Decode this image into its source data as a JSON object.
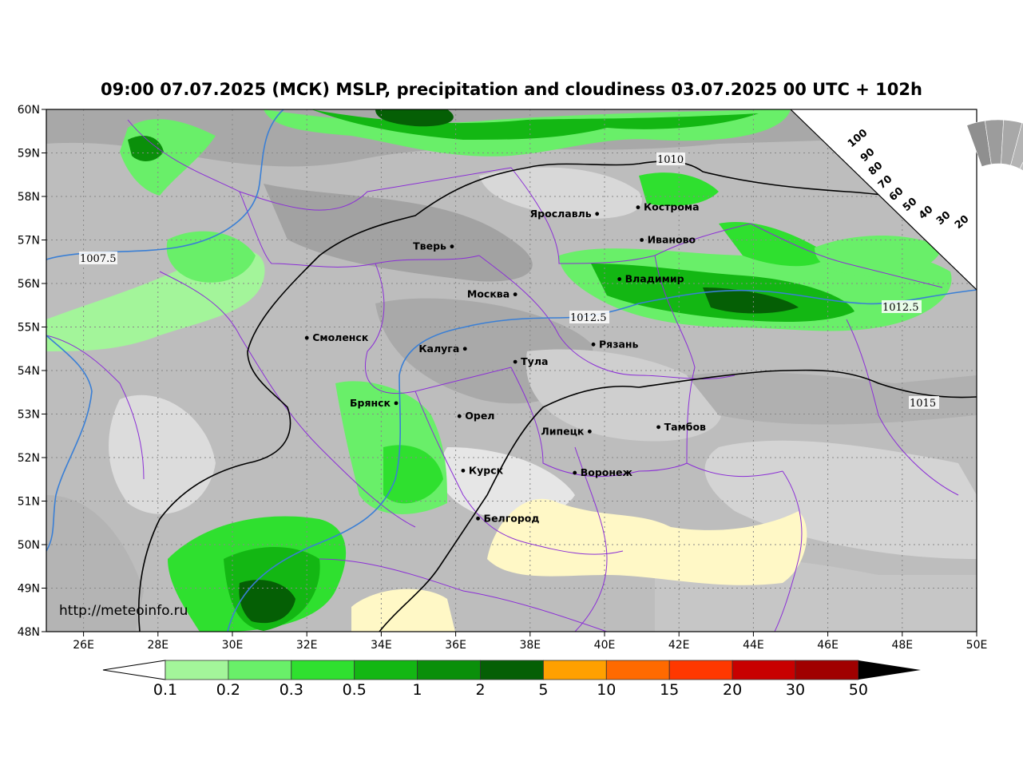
{
  "title": "09:00 07.07.2025 (МСК) MSLP, precipitation and cloudiness 03.07.2025 00 UTC + 102h",
  "watermark": "http://meteoinfo.ru",
  "axes": {
    "lat_labels": [
      "60N",
      "59N",
      "58N",
      "57N",
      "56N",
      "55N",
      "54N",
      "53N",
      "52N",
      "51N",
      "50N",
      "49N",
      "48N"
    ],
    "lon_labels": [
      "26E",
      "28E",
      "30E",
      "32E",
      "34E",
      "36E",
      "38E",
      "40E",
      "42E",
      "44E",
      "46E",
      "48E",
      "50E"
    ],
    "lat_range": [
      48,
      60
    ],
    "lon_range": [
      25,
      50
    ]
  },
  "cities": [
    {
      "name": "Ярославль",
      "lon": 39.8,
      "lat": 57.6
    },
    {
      "name": "Кострома",
      "lon": 40.9,
      "lat": 57.75
    },
    {
      "name": "Иваново",
      "lon": 41.0,
      "lat": 57.0
    },
    {
      "name": "Тверь",
      "lon": 35.9,
      "lat": 56.85
    },
    {
      "name": "Владимир",
      "lon": 40.4,
      "lat": 56.1
    },
    {
      "name": "Москва",
      "lon": 37.6,
      "lat": 55.75
    },
    {
      "name": "Смоленск",
      "lon": 32.0,
      "lat": 54.75
    },
    {
      "name": "Калуга",
      "lon": 36.25,
      "lat": 54.5
    },
    {
      "name": "Рязань",
      "lon": 39.7,
      "lat": 54.6
    },
    {
      "name": "Тула",
      "lon": 37.6,
      "lat": 54.2
    },
    {
      "name": "Брянск",
      "lon": 34.4,
      "lat": 53.25
    },
    {
      "name": "Орел",
      "lon": 36.1,
      "lat": 52.95
    },
    {
      "name": "Липецк",
      "lon": 39.6,
      "lat": 52.6
    },
    {
      "name": "Тамбов",
      "lon": 41.45,
      "lat": 52.7
    },
    {
      "name": "Курск",
      "lon": 36.2,
      "lat": 51.7
    },
    {
      "name": "Воронеж",
      "lon": 39.2,
      "lat": 51.65
    },
    {
      "name": "Белгород",
      "lon": 36.6,
      "lat": 50.6
    }
  ],
  "isobars": [
    {
      "label": "1007.5",
      "color": "#3a7fd5"
    },
    {
      "label": "1010",
      "color": "#000000"
    },
    {
      "label": "1012.5",
      "color": "#3a7fd5"
    },
    {
      "label": "1015",
      "color": "#000000"
    }
  ],
  "cloud_legend": [
    "100",
    "90",
    "80",
    "70",
    "60",
    "50",
    "40",
    "30",
    "20"
  ],
  "precip_legend": {
    "labels": [
      "0.1",
      "0.2",
      "0.3",
      "0.5",
      "1",
      "2",
      "5",
      "10",
      "15",
      "20",
      "30",
      "50"
    ],
    "colors": [
      "#a3f59a",
      "#69ef69",
      "#2fe02f",
      "#13b713",
      "#0a8f0a",
      "#055f05",
      "#ffa000",
      "#ff6a00",
      "#ff3800",
      "#c80000",
      "#a00000",
      "#000000"
    ]
  }
}
